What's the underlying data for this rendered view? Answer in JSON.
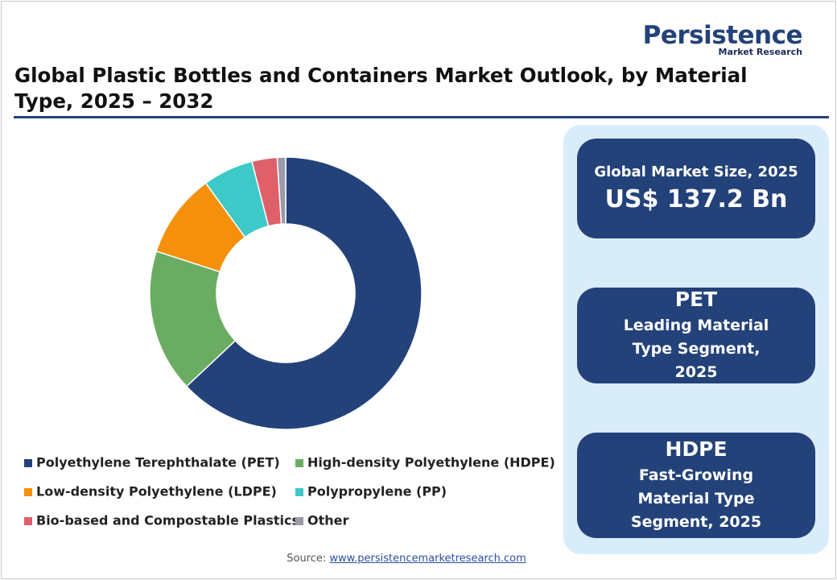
{
  "logo": {
    "name": "Persistence",
    "tagline": "Market Research"
  },
  "chart_data": {
    "type": "donut",
    "title": "Global Plastic Bottles and Containers Market Outlook, by Material Type, 2025 – 2032",
    "categories": [
      "Polyethylene Terephthalate (PET)",
      "High-density Polyethylene (HDPE)",
      "Low-density Polyethylene (LDPE)",
      "Polypropylene (PP)",
      "Bio-based and Compostable Plastics",
      "Other"
    ],
    "values": [
      63,
      17,
      10,
      6,
      3,
      1
    ],
    "colors": [
      "#24427a",
      "#6aad62",
      "#f4900c",
      "#3ec9c9",
      "#e0606a",
      "#9a9aaa"
    ]
  },
  "cards": [
    {
      "heading": "Global Market Size, 2025",
      "value": "US$ 137.2 Bn"
    },
    {
      "heading": "PET",
      "value": "Leading Material Type Segment, 2025"
    },
    {
      "heading": "HDPE",
      "value": "Fast-Growing Material Type Segment, 2025"
    }
  ],
  "source": {
    "label": "Source:",
    "link": "www.persistencemarketresearch.com"
  }
}
